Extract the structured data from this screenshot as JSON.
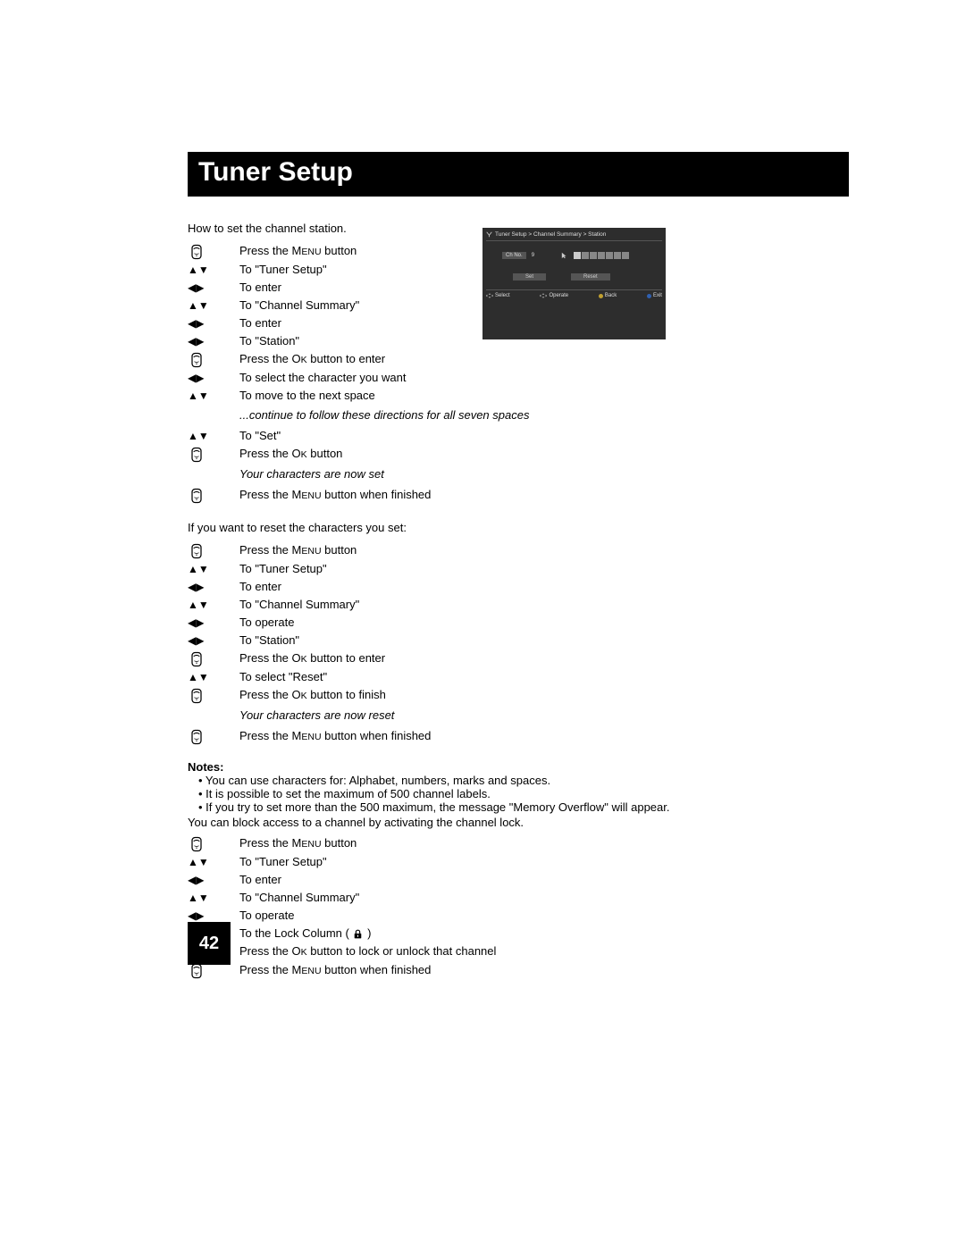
{
  "title": "Tuner Setup",
  "intro": "How to set the channel station.",
  "set_steps": [
    {
      "icon": "remote",
      "text_before": "Press the ",
      "sc": "Menu",
      "text_after": " button"
    },
    {
      "icon": "ud",
      "text_before": "To \"Tuner Setup\""
    },
    {
      "icon": "lr",
      "text_before": "To enter"
    },
    {
      "icon": "ud",
      "text_before": "To \"Channel Summary\""
    },
    {
      "icon": "lr",
      "text_before": "To enter"
    },
    {
      "icon": "lr",
      "text_before": "To \"Station\""
    },
    {
      "icon": "remote",
      "text_before": "Press the ",
      "sc": "Ok",
      "text_after": " button to enter"
    },
    {
      "icon": "lr",
      "text_before": "To select the character you want"
    },
    {
      "icon": "ud",
      "text_before": "To move to the next space"
    }
  ],
  "set_note": "...continue to follow these directions for all seven spaces",
  "set_steps2": [
    {
      "icon": "ud",
      "text_before": "To \"Set\""
    },
    {
      "icon": "remote",
      "text_before": "Press the ",
      "sc": "Ok",
      "text_after": " button"
    }
  ],
  "set_result": "Your characters are now set",
  "set_steps3": [
    {
      "icon": "remote",
      "text_before": "Press the ",
      "sc": "Menu",
      "text_after": " button when finished"
    }
  ],
  "reset_intro": "If you want to reset the characters you set:",
  "reset_steps": [
    {
      "icon": "remote",
      "text_before": "Press the ",
      "sc": "Menu",
      "text_after": " button"
    },
    {
      "icon": "ud",
      "text_before": "To \"Tuner Setup\""
    },
    {
      "icon": "lr",
      "text_before": "To enter"
    },
    {
      "icon": "ud",
      "text_before": "To \"Channel Summary\""
    },
    {
      "icon": "lr",
      "text_before": "To operate"
    },
    {
      "icon": "lr",
      "text_before": "To \"Station\""
    },
    {
      "icon": "remote",
      "text_before": "Press the ",
      "sc": "Ok",
      "text_after": " button to enter"
    },
    {
      "icon": "ud",
      "text_before": "To select \"Reset\""
    },
    {
      "icon": "remote",
      "text_before": "Press the ",
      "sc": "Ok",
      "text_after": " button to finish"
    }
  ],
  "reset_result": "Your characters are now reset",
  "reset_steps2": [
    {
      "icon": "remote",
      "text_before": "Press the ",
      "sc": "Menu",
      "text_after": " button when finished"
    }
  ],
  "notes_header": "Notes:",
  "notes": [
    "You can use characters for: Alphabet, numbers, marks and spaces.",
    "It is possible to set the maximum of 500 channel labels.",
    "If you try to set more than the 500 maximum, the message \"Memory Overflow\" will appear."
  ],
  "lock_intro": "You can block access to a channel by activating the channel lock.",
  "lock_steps": [
    {
      "icon": "remote",
      "text_before": "Press the ",
      "sc": "Menu",
      "text_after": " button"
    },
    {
      "icon": "ud",
      "text_before": "To \"Tuner Setup\""
    },
    {
      "icon": "lr",
      "text_before": "To enter"
    },
    {
      "icon": "ud",
      "text_before": "To \"Channel Summary\""
    },
    {
      "icon": "lr",
      "text_before": "To operate"
    },
    {
      "icon": "udlr",
      "text_before": "To the Lock Column ( ",
      "lock": true,
      "text_after": " )"
    },
    {
      "icon": "remote",
      "text_before": "Press the ",
      "sc": "Ok",
      "text_after": " button to lock or unlock that channel"
    },
    {
      "icon": "remote",
      "text_before": "Press the ",
      "sc": "Menu",
      "text_after": " button when finished"
    }
  ],
  "page_number": "42",
  "osd": {
    "breadcrumb": "Tuner Setup > Channel Summary > Station",
    "chno_label": "Ch No.",
    "chno_value": "9",
    "set_btn": "Set",
    "reset_btn": "Reset",
    "legend": {
      "select": "Select",
      "operate": "Operate",
      "back": "Back",
      "exit": "Exit"
    }
  },
  "colors": {
    "black": "#000000",
    "white": "#ffffff",
    "osd_bg": "#2d2d2d",
    "osd_fg": "#dddddd"
  }
}
